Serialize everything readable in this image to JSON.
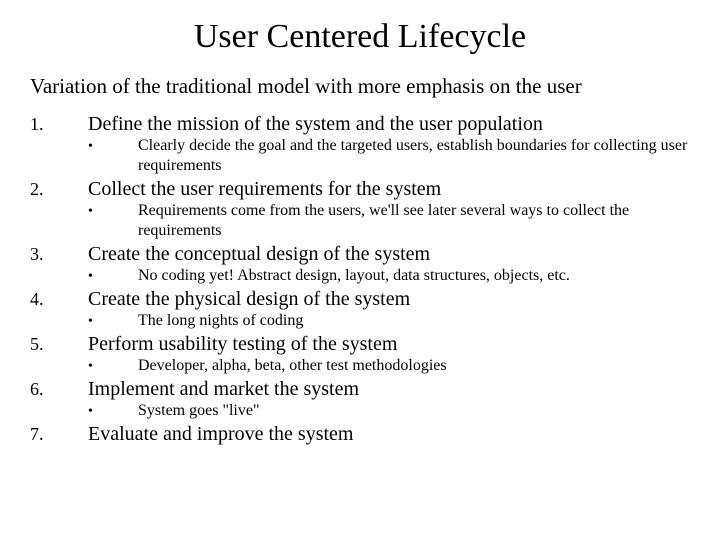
{
  "title": "User Centered Lifecycle",
  "subtitle": "Variation of the traditional model with more emphasis on the user",
  "colors": {
    "background": "#ffffff",
    "text": "#000000"
  },
  "typography": {
    "family": "Times New Roman",
    "title_size": 34,
    "subtitle_size": 21,
    "item_head_size": 20,
    "item_num_size": 18,
    "sub_text_size": 16
  },
  "items": [
    {
      "num": "1.",
      "head": "Define the mission of the system and the user population",
      "bullet": "•",
      "sub": "Clearly decide the goal and the targeted users, establish boundaries for collecting user requirements"
    },
    {
      "num": "2.",
      "head": "Collect the user requirements for the system",
      "bullet": "•",
      "sub": "Requirements come from the users, we'll see later several ways to collect the requirements"
    },
    {
      "num": "3.",
      "head": "Create the conceptual design of the system",
      "bullet": "•",
      "sub": "No coding yet!  Abstract design, layout, data structures, objects, etc."
    },
    {
      "num": "4.",
      "head": "Create the physical design of the system",
      "bullet": "•",
      "sub": "The long nights of coding"
    },
    {
      "num": "5.",
      "head": "Perform usability testing of the system",
      "bullet": "•",
      "sub": "Developer, alpha, beta, other test methodologies"
    },
    {
      "num": "6.",
      "head": "Implement and market the system",
      "bullet": "•",
      "sub": "System goes \"live\""
    },
    {
      "num": "7.",
      "head": "Evaluate and improve the system",
      "bullet": "",
      "sub": ""
    }
  ]
}
